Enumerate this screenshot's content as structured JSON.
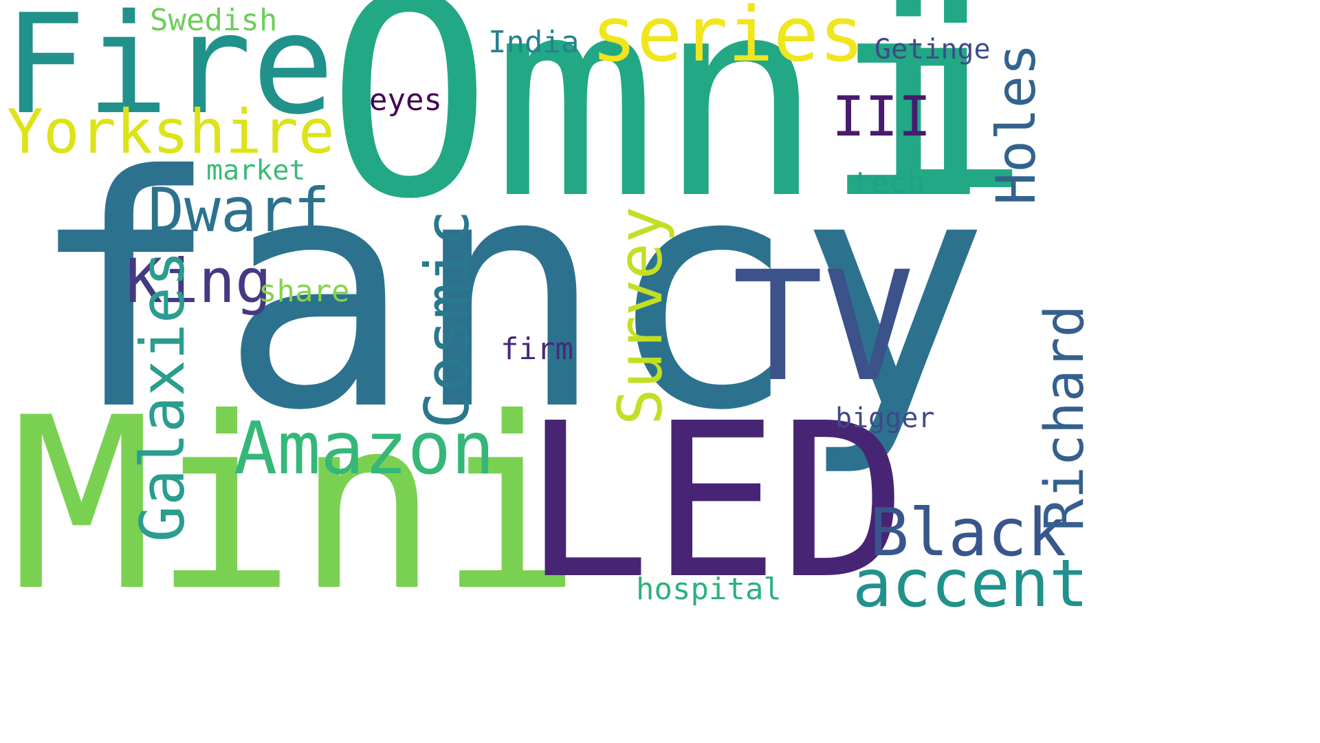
{
  "words": [
    {
      "text": "fancy",
      "color": "#2c728e"
    },
    {
      "text": "Omni",
      "color": "#22a884"
    },
    {
      "text": "i",
      "color": "#22a884"
    },
    {
      "text": "Mini",
      "color": "#7ad151"
    },
    {
      "text": "LED",
      "color": "#482475"
    },
    {
      "text": "Fire",
      "color": "#21918c"
    },
    {
      "text": "series",
      "color": "#f1e51d"
    },
    {
      "text": "Yorkshire",
      "color": "#dde318"
    },
    {
      "text": "TV",
      "color": "#3b528b"
    },
    {
      "text": "Dwarf",
      "color": "#2c728e"
    },
    {
      "text": "Amazon",
      "color": "#35b779"
    },
    {
      "text": "King",
      "color": "#443983"
    },
    {
      "text": "Cosmic",
      "color": "#2a788e"
    },
    {
      "text": "Survey",
      "color": "#c2df23"
    },
    {
      "text": "Galaxies",
      "color": "#2a9d8f"
    },
    {
      "text": "Black",
      "color": "#39568c"
    },
    {
      "text": "accent",
      "color": "#21918c"
    },
    {
      "text": "Richard",
      "color": "#355f8d"
    },
    {
      "text": "Holes",
      "color": "#33638d"
    },
    {
      "text": "III",
      "color": "#481b6d"
    },
    {
      "text": "Swedish",
      "color": "#6ccd5a"
    },
    {
      "text": "India",
      "color": "#26828e"
    },
    {
      "text": "Getinge",
      "color": "#3e4a89"
    },
    {
      "text": "eyes",
      "color": "#440154"
    },
    {
      "text": "market",
      "color": "#3aba76"
    },
    {
      "text": "tech",
      "color": "#1fa187"
    },
    {
      "text": "share",
      "color": "#84d44b"
    },
    {
      "text": "firm",
      "color": "#482878"
    },
    {
      "text": "bigger",
      "color": "#3e4989"
    },
    {
      "text": "hospital",
      "color": "#2db27d"
    }
  ]
}
